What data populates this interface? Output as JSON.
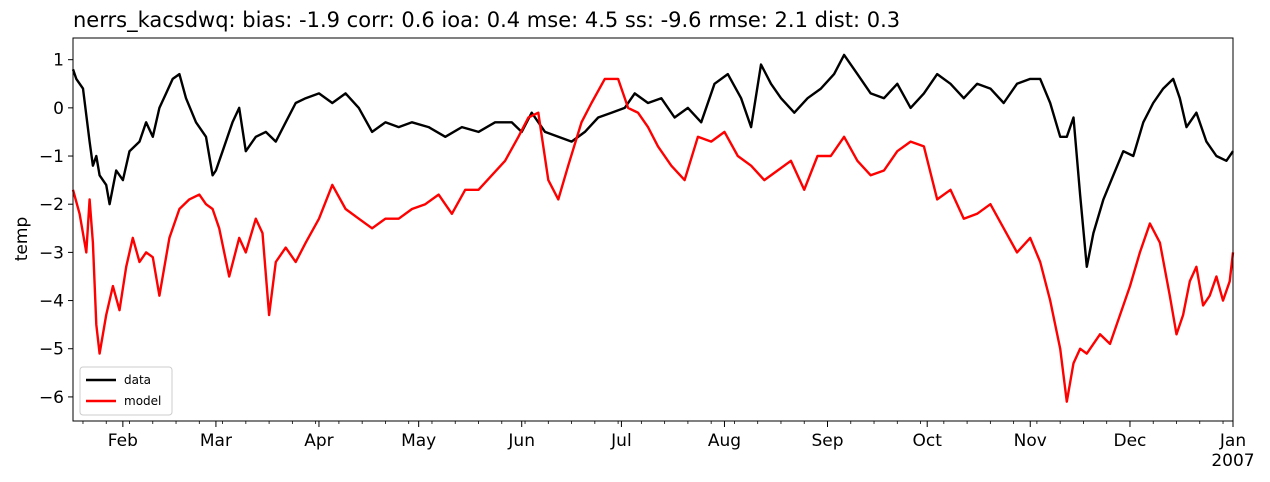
{
  "chart_data": {
    "type": "line",
    "title": "nerrs_kacsdwq: bias: -1.9  corr: 0.6  ioa: 0.4  mse: 4.5  ss: -9.6  rmse: 2.1  dist: 0.3",
    "xlabel": "",
    "ylabel": "temp",
    "xlim": [
      "2006-01-17",
      "2007-01-01"
    ],
    "ylim": [
      -6.5,
      1.45
    ],
    "yticks": [
      1,
      0,
      -1,
      -2,
      -3,
      -4,
      -5,
      -6
    ],
    "ytick_labels": [
      "1",
      "0",
      "−1",
      "−2",
      "−3",
      "−4",
      "−5",
      "−6"
    ],
    "xticks": [
      {
        "date": "2006-02-01",
        "label": "Feb"
      },
      {
        "date": "2006-03-01",
        "label": "Mar"
      },
      {
        "date": "2006-04-01",
        "label": "Apr"
      },
      {
        "date": "2006-05-01",
        "label": "May"
      },
      {
        "date": "2006-06-01",
        "label": "Jun"
      },
      {
        "date": "2006-07-01",
        "label": "Jul"
      },
      {
        "date": "2006-08-01",
        "label": "Aug"
      },
      {
        "date": "2006-09-01",
        "label": "Sep"
      },
      {
        "date": "2006-10-01",
        "label": "Oct"
      },
      {
        "date": "2006-11-01",
        "label": "Nov"
      },
      {
        "date": "2006-12-01",
        "label": "Dec"
      },
      {
        "date": "2007-01-01",
        "label": "Jan",
        "sublabel": "2007"
      }
    ],
    "legend_position": "lower-left",
    "grid": false,
    "series": [
      {
        "name": "data",
        "color": "#000000",
        "x": [
          "2006-01-17",
          "2006-01-18",
          "2006-01-20",
          "2006-01-22",
          "2006-01-23",
          "2006-01-24",
          "2006-01-25",
          "2006-01-27",
          "2006-01-28",
          "2006-01-30",
          "2006-02-01",
          "2006-02-03",
          "2006-02-06",
          "2006-02-08",
          "2006-02-10",
          "2006-02-12",
          "2006-02-14",
          "2006-02-16",
          "2006-02-18",
          "2006-02-20",
          "2006-02-23",
          "2006-02-26",
          "2006-02-28",
          "2006-03-01",
          "2006-03-03",
          "2006-03-06",
          "2006-03-08",
          "2006-03-10",
          "2006-03-13",
          "2006-03-16",
          "2006-03-19",
          "2006-03-22",
          "2006-03-25",
          "2006-03-28",
          "2006-04-01",
          "2006-04-05",
          "2006-04-09",
          "2006-04-13",
          "2006-04-17",
          "2006-04-21",
          "2006-04-25",
          "2006-04-29",
          "2006-05-04",
          "2006-05-09",
          "2006-05-14",
          "2006-05-19",
          "2006-05-24",
          "2006-05-29",
          "2006-06-01",
          "2006-06-04",
          "2006-06-08",
          "2006-06-12",
          "2006-06-16",
          "2006-06-20",
          "2006-06-24",
          "2006-06-28",
          "2006-07-02",
          "2006-07-05",
          "2006-07-09",
          "2006-07-13",
          "2006-07-17",
          "2006-07-21",
          "2006-07-25",
          "2006-07-29",
          "2006-08-02",
          "2006-08-06",
          "2006-08-09",
          "2006-08-12",
          "2006-08-15",
          "2006-08-18",
          "2006-08-22",
          "2006-08-26",
          "2006-08-30",
          "2006-09-03",
          "2006-09-06",
          "2006-09-10",
          "2006-09-14",
          "2006-09-18",
          "2006-09-22",
          "2006-09-26",
          "2006-09-30",
          "2006-10-04",
          "2006-10-08",
          "2006-10-12",
          "2006-10-16",
          "2006-10-20",
          "2006-10-24",
          "2006-10-28",
          "2006-11-01",
          "2006-11-04",
          "2006-11-07",
          "2006-11-10",
          "2006-11-12",
          "2006-11-14",
          "2006-11-16",
          "2006-11-18",
          "2006-11-20",
          "2006-11-23",
          "2006-11-26",
          "2006-11-29",
          "2006-12-02",
          "2006-12-05",
          "2006-12-08",
          "2006-12-11",
          "2006-12-14",
          "2006-12-16",
          "2006-12-18",
          "2006-12-21",
          "2006-12-24",
          "2006-12-27",
          "2006-12-30",
          "2007-01-01"
        ],
        "y": [
          0.8,
          0.6,
          0.4,
          -0.7,
          -1.2,
          -1.0,
          -1.4,
          -1.6,
          -2.0,
          -1.3,
          -1.5,
          -0.9,
          -0.7,
          -0.3,
          -0.6,
          0.0,
          0.3,
          0.6,
          0.7,
          0.2,
          -0.3,
          -0.6,
          -1.4,
          -1.3,
          -0.9,
          -0.3,
          0.0,
          -0.9,
          -0.6,
          -0.5,
          -0.7,
          -0.3,
          0.1,
          0.2,
          0.3,
          0.1,
          0.3,
          0.0,
          -0.5,
          -0.3,
          -0.4,
          -0.3,
          -0.4,
          -0.6,
          -0.4,
          -0.5,
          -0.3,
          -0.3,
          -0.5,
          -0.1,
          -0.5,
          -0.6,
          -0.7,
          -0.5,
          -0.2,
          -0.1,
          0.0,
          0.3,
          0.1,
          0.2,
          -0.2,
          0.0,
          -0.3,
          0.5,
          0.7,
          0.2,
          -0.4,
          0.9,
          0.5,
          0.2,
          -0.1,
          0.2,
          0.4,
          0.7,
          1.1,
          0.7,
          0.3,
          0.2,
          0.5,
          0.0,
          0.3,
          0.7,
          0.5,
          0.2,
          0.5,
          0.4,
          0.1,
          0.5,
          0.6,
          0.6,
          0.1,
          -0.6,
          -0.6,
          -0.2,
          -1.8,
          -3.3,
          -2.6,
          -1.9,
          -1.4,
          -0.9,
          -1.0,
          -0.3,
          0.1,
          0.4,
          0.6,
          0.2,
          -0.4,
          -0.1,
          -0.7,
          -1.0,
          -1.1,
          -0.9
        ]
      },
      {
        "name": "model",
        "color": "#ff0000",
        "x": [
          "2006-01-17",
          "2006-01-19",
          "2006-01-21",
          "2006-01-22",
          "2006-01-23",
          "2006-01-24",
          "2006-01-25",
          "2006-01-27",
          "2006-01-29",
          "2006-01-31",
          "2006-02-02",
          "2006-02-04",
          "2006-02-06",
          "2006-02-08",
          "2006-02-10",
          "2006-02-12",
          "2006-02-15",
          "2006-02-18",
          "2006-02-21",
          "2006-02-24",
          "2006-02-26",
          "2006-02-28",
          "2006-03-02",
          "2006-03-05",
          "2006-03-08",
          "2006-03-10",
          "2006-03-13",
          "2006-03-15",
          "2006-03-17",
          "2006-03-19",
          "2006-03-22",
          "2006-03-25",
          "2006-03-28",
          "2006-04-01",
          "2006-04-05",
          "2006-04-09",
          "2006-04-13",
          "2006-04-17",
          "2006-04-21",
          "2006-04-25",
          "2006-04-29",
          "2006-05-03",
          "2006-05-07",
          "2006-05-11",
          "2006-05-15",
          "2006-05-19",
          "2006-05-23",
          "2006-05-27",
          "2006-05-31",
          "2006-06-03",
          "2006-06-06",
          "2006-06-09",
          "2006-06-12",
          "2006-06-15",
          "2006-06-19",
          "2006-06-22",
          "2006-06-26",
          "2006-06-30",
          "2006-07-03",
          "2006-07-06",
          "2006-07-09",
          "2006-07-12",
          "2006-07-16",
          "2006-07-20",
          "2006-07-24",
          "2006-07-28",
          "2006-08-01",
          "2006-08-05",
          "2006-08-09",
          "2006-08-13",
          "2006-08-17",
          "2006-08-21",
          "2006-08-25",
          "2006-08-29",
          "2006-09-02",
          "2006-09-06",
          "2006-09-10",
          "2006-09-14",
          "2006-09-18",
          "2006-09-22",
          "2006-09-26",
          "2006-09-30",
          "2006-10-04",
          "2006-10-08",
          "2006-10-12",
          "2006-10-16",
          "2006-10-20",
          "2006-10-24",
          "2006-10-28",
          "2006-11-01",
          "2006-11-04",
          "2006-11-07",
          "2006-11-10",
          "2006-11-12",
          "2006-11-14",
          "2006-11-16",
          "2006-11-18",
          "2006-11-20",
          "2006-11-22",
          "2006-11-25",
          "2006-11-28",
          "2006-12-01",
          "2006-12-04",
          "2006-12-07",
          "2006-12-10",
          "2006-12-13",
          "2006-12-15",
          "2006-12-17",
          "2006-12-19",
          "2006-12-21",
          "2006-12-23",
          "2006-12-25",
          "2006-12-27",
          "2006-12-29",
          "2006-12-31",
          "2007-01-01"
        ],
        "y": [
          -1.7,
          -2.2,
          -3.0,
          -1.9,
          -2.8,
          -4.5,
          -5.1,
          -4.3,
          -3.7,
          -4.2,
          -3.3,
          -2.7,
          -3.2,
          -3.0,
          -3.1,
          -3.9,
          -2.7,
          -2.1,
          -1.9,
          -1.8,
          -2.0,
          -2.1,
          -2.5,
          -3.5,
          -2.7,
          -3.0,
          -2.3,
          -2.6,
          -4.3,
          -3.2,
          -2.9,
          -3.2,
          -2.8,
          -2.3,
          -1.6,
          -2.1,
          -2.3,
          -2.5,
          -2.3,
          -2.3,
          -2.1,
          -2.0,
          -1.8,
          -2.2,
          -1.7,
          -1.7,
          -1.4,
          -1.1,
          -0.6,
          -0.2,
          -0.1,
          -1.5,
          -1.9,
          -1.2,
          -0.3,
          0.1,
          0.6,
          0.6,
          0.0,
          -0.1,
          -0.4,
          -0.8,
          -1.2,
          -1.5,
          -0.6,
          -0.7,
          -0.5,
          -1.0,
          -1.2,
          -1.5,
          -1.3,
          -1.1,
          -1.7,
          -1.0,
          -1.0,
          -0.6,
          -1.1,
          -1.4,
          -1.3,
          -0.9,
          -0.7,
          -0.8,
          -1.9,
          -1.7,
          -2.3,
          -2.2,
          -2.0,
          -2.5,
          -3.0,
          -2.7,
          -3.2,
          -4.0,
          -5.0,
          -6.1,
          -5.3,
          -5.0,
          -5.1,
          -4.9,
          -4.7,
          -4.9,
          -4.3,
          -3.7,
          -3.0,
          -2.4,
          -2.8,
          -3.9,
          -4.7,
          -4.3,
          -3.6,
          -3.3,
          -4.1,
          -3.9,
          -3.5,
          -4.0,
          -3.6,
          -3.0
        ]
      }
    ]
  }
}
